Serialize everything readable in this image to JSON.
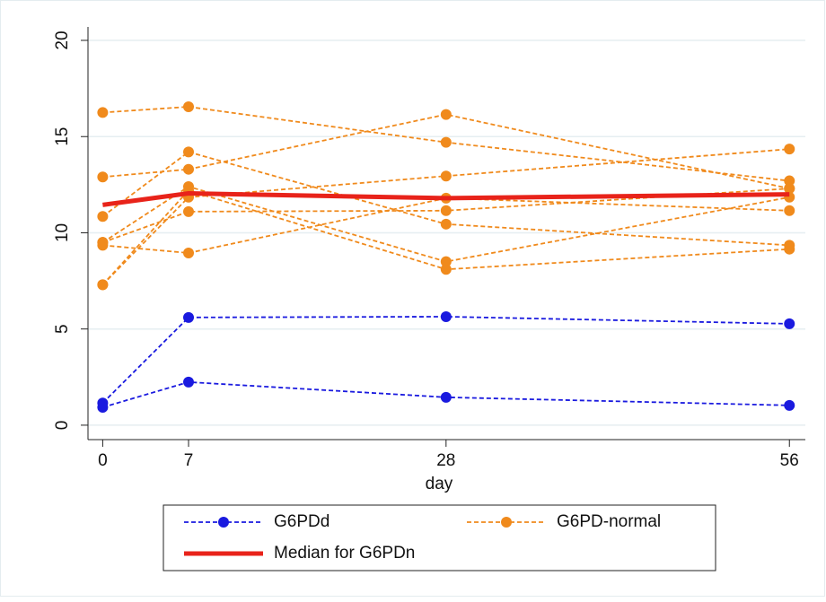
{
  "chart_data": {
    "type": "line",
    "x": [
      0,
      7,
      28,
      56
    ],
    "xlabel": "day",
    "xlim": [
      -1.2,
      57.3
    ],
    "xticks": [
      0,
      7,
      28,
      56
    ],
    "ylim": [
      -0.75,
      20.7
    ],
    "yticks": [
      0,
      5,
      10,
      15,
      20
    ],
    "grid": true,
    "legend": "bottom",
    "series": [
      {
        "name": "G6PDd",
        "color": "#1a1adf",
        "dashed": true,
        "markers": true,
        "lines": [
          [
            1.15,
            5.6,
            5.64,
            5.27
          ],
          [
            0.93,
            2.24,
            1.45,
            1.03
          ]
        ]
      },
      {
        "name": "G6PD-normal",
        "color": "#f08a1c",
        "dashed": true,
        "markers": true,
        "lines": [
          [
            16.25,
            16.55,
            14.7,
            12.7
          ],
          [
            12.9,
            13.3,
            16.15,
            12.3
          ],
          [
            10.85,
            14.2,
            10.45,
            9.35
          ],
          [
            9.5,
            12.4,
            8.5,
            11.85
          ],
          [
            9.35,
            8.95,
            11.8,
            11.15
          ],
          [
            7.3,
            12.2,
            8.1,
            9.15
          ],
          [
            7.3,
            11.85,
            12.95,
            14.35
          ],
          [
            9.5,
            11.1,
            11.15,
            12.3
          ]
        ]
      },
      {
        "name": "Median for G6PDn",
        "color": "#e8231a",
        "dashed": false,
        "markers": false,
        "values": [
          11.45,
          12.05,
          11.8,
          12.0
        ]
      }
    ]
  }
}
